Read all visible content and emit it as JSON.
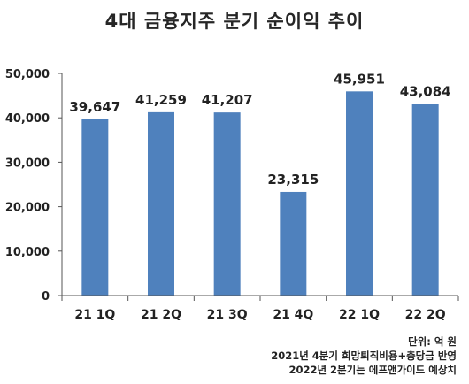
{
  "chart_data": {
    "type": "bar",
    "title": "4대 금융지주 분기 순이익 추이",
    "categories": [
      "21 1Q",
      "21 2Q",
      "21 3Q",
      "21 4Q",
      "22 1Q",
      "22 2Q"
    ],
    "values": [
      39647,
      41259,
      41207,
      23315,
      45951,
      43084
    ],
    "data_labels": [
      "39,647",
      "41,259",
      "41,207",
      "23,315",
      "45,951",
      "43,084"
    ],
    "y_ticks": [
      "0",
      "10,000",
      "20,000",
      "30,000",
      "40,000",
      "50,000"
    ],
    "ylim": [
      0,
      50000
    ],
    "bar_color": "#4f81bd",
    "grid": false,
    "legend": "none"
  },
  "notes": {
    "unit": "단위: 억 원",
    "note1": "2021년 4분기 희망퇴직비용+충당금 반영",
    "note2": "2022년 2분기는 에프앤가이드 예상치"
  }
}
